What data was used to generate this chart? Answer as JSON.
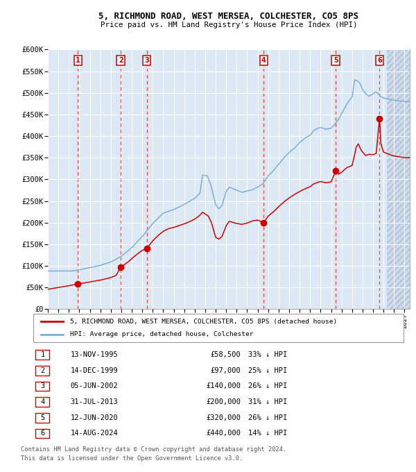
{
  "title": "5, RICHMOND ROAD, WEST MERSEA, COLCHESTER, CO5 8PS",
  "subtitle": "Price paid vs. HM Land Registry's House Price Index (HPI)",
  "bg_color": "#dce9f5",
  "grid_color": "#ffffff",
  "sale_line_color": "#cc0000",
  "hpi_line_color": "#7bafd4",
  "sale_marker_color": "#cc0000",
  "dashed_line_color": "#ee4444",
  "transactions": [
    {
      "num": 1,
      "price": 58500,
      "x_year": 1995.87
    },
    {
      "num": 2,
      "price": 97000,
      "x_year": 1999.95
    },
    {
      "num": 3,
      "price": 140000,
      "x_year": 2002.42
    },
    {
      "num": 4,
      "price": 200000,
      "x_year": 2013.58
    },
    {
      "num": 5,
      "price": 320000,
      "x_year": 2020.44
    },
    {
      "num": 6,
      "price": 440000,
      "x_year": 2024.62
    }
  ],
  "table_rows": [
    {
      "num": 1,
      "date": "13-NOV-1995",
      "price": "£58,500",
      "note": "33% ↓ HPI"
    },
    {
      "num": 2,
      "date": "14-DEC-1999",
      "price": "£97,000",
      "note": "25% ↓ HPI"
    },
    {
      "num": 3,
      "date": "05-JUN-2002",
      "price": "£140,000",
      "note": "26% ↓ HPI"
    },
    {
      "num": 4,
      "date": "31-JUL-2013",
      "price": "£200,000",
      "note": "31% ↓ HPI"
    },
    {
      "num": 5,
      "date": "12-JUN-2020",
      "price": "£320,000",
      "note": "26% ↓ HPI"
    },
    {
      "num": 6,
      "date": "14-AUG-2024",
      "price": "£440,000",
      "note": "14% ↓ HPI"
    }
  ],
  "legend_entries": [
    "5, RICHMOND ROAD, WEST MERSEA, COLCHESTER, CO5 8PS (detached house)",
    "HPI: Average price, detached house, Colchester"
  ],
  "footer_lines": [
    "Contains HM Land Registry data © Crown copyright and database right 2024.",
    "This data is licensed under the Open Government Licence v3.0."
  ],
  "ylim": [
    0,
    600000
  ],
  "yticks": [
    0,
    50000,
    100000,
    150000,
    200000,
    250000,
    300000,
    350000,
    400000,
    450000,
    500000,
    550000,
    600000
  ],
  "xlim_start": 1993.0,
  "xlim_end": 2027.5,
  "xtick_years": [
    1993,
    1994,
    1995,
    1996,
    1997,
    1998,
    1999,
    2000,
    2001,
    2002,
    2003,
    2004,
    2005,
    2006,
    2007,
    2008,
    2009,
    2010,
    2011,
    2012,
    2013,
    2014,
    2015,
    2016,
    2017,
    2018,
    2019,
    2020,
    2021,
    2022,
    2023,
    2024,
    2025,
    2026,
    2027
  ]
}
